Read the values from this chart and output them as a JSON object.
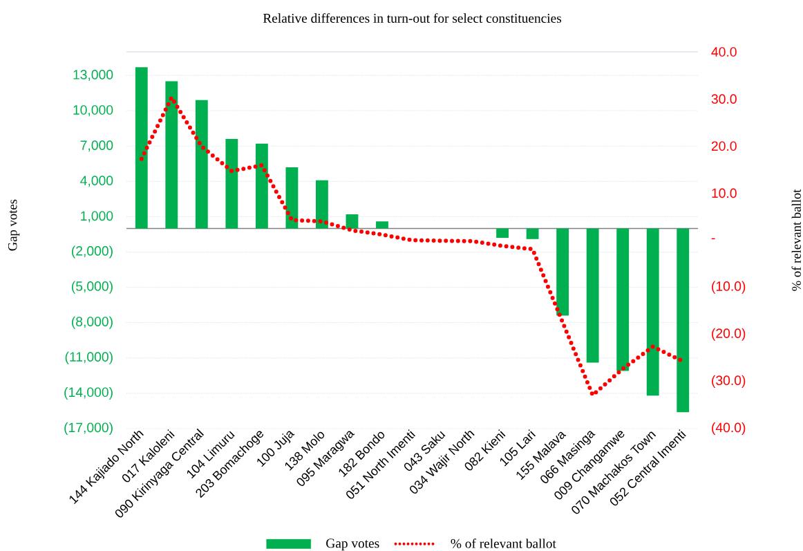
{
  "chart_data": {
    "type": "bar",
    "title": "Relative differences in turn-out for select constituencies",
    "ylabel": "Gap votes",
    "y2label": "% of relevant ballot",
    "categories": [
      "144 Kajiado North",
      "017 Kaloleni",
      "090 Kirinyaga Central",
      "104 Limuru",
      "203 Bomachoge",
      "100 Juja",
      "138 Molo",
      "095 Maragwa",
      "182 Bondo",
      "051 North Imenti",
      "043 Saku",
      "034 Wajir North",
      "082 Kieni",
      "105 Lari",
      "155 Malava",
      "066 Masinga",
      "009 Changamwe",
      "070 Machakos Town",
      "052 Central Imenti"
    ],
    "series": [
      {
        "name": "Gap votes",
        "axis": "y",
        "color": "#00b050",
        "values": [
          13700,
          12500,
          10900,
          7600,
          7200,
          5200,
          4100,
          1200,
          600,
          0,
          0,
          0,
          -800,
          -900,
          -7400,
          -11400,
          -12100,
          -14200,
          -15600
        ]
      },
      {
        "name": "% of relevant ballot",
        "type": "line",
        "axis": "y2",
        "color": "#ff0000",
        "line_style": "dotted",
        "values": [
          17.3,
          30.3,
          19.9,
          14.7,
          15.9,
          4.3,
          4.0,
          2.1,
          1.2,
          0.0,
          -0.1,
          -0.2,
          -1.2,
          -1.9,
          -17.4,
          -32.9,
          -27.3,
          -22.6,
          -25.7
        ]
      }
    ],
    "ylim": [
      -17000,
      15000
    ],
    "yticks": [
      {
        "value": -17000,
        "label": "(17,000)"
      },
      {
        "value": -14000,
        "label": "(14,000)"
      },
      {
        "value": -11000,
        "label": "(11,000)"
      },
      {
        "value": -8000,
        "label": "(8,000)"
      },
      {
        "value": -5000,
        "label": "(5,000)"
      },
      {
        "value": -2000,
        "label": "(2,000)"
      },
      {
        "value": 1000,
        "label": "1,000"
      },
      {
        "value": 4000,
        "label": "4,000"
      },
      {
        "value": 7000,
        "label": "7,000"
      },
      {
        "value": 10000,
        "label": "10,000"
      },
      {
        "value": 13000,
        "label": "13,000"
      }
    ],
    "y2lim": [
      -40,
      40
    ],
    "y2ticks": [
      {
        "value": -40,
        "label": "(40.0)"
      },
      {
        "value": -30,
        "label": "(30.0)"
      },
      {
        "value": -20,
        "label": "(20.0)"
      },
      {
        "value": -10,
        "label": "(10.0)"
      },
      {
        "value": 0,
        "label": "-"
      },
      {
        "value": 10,
        "label": "10.0"
      },
      {
        "value": 20,
        "label": "20.0"
      },
      {
        "value": 30,
        "label": "30.0"
      },
      {
        "value": 40,
        "label": "40.0"
      }
    ],
    "grid": "y",
    "legend": "bottom"
  }
}
